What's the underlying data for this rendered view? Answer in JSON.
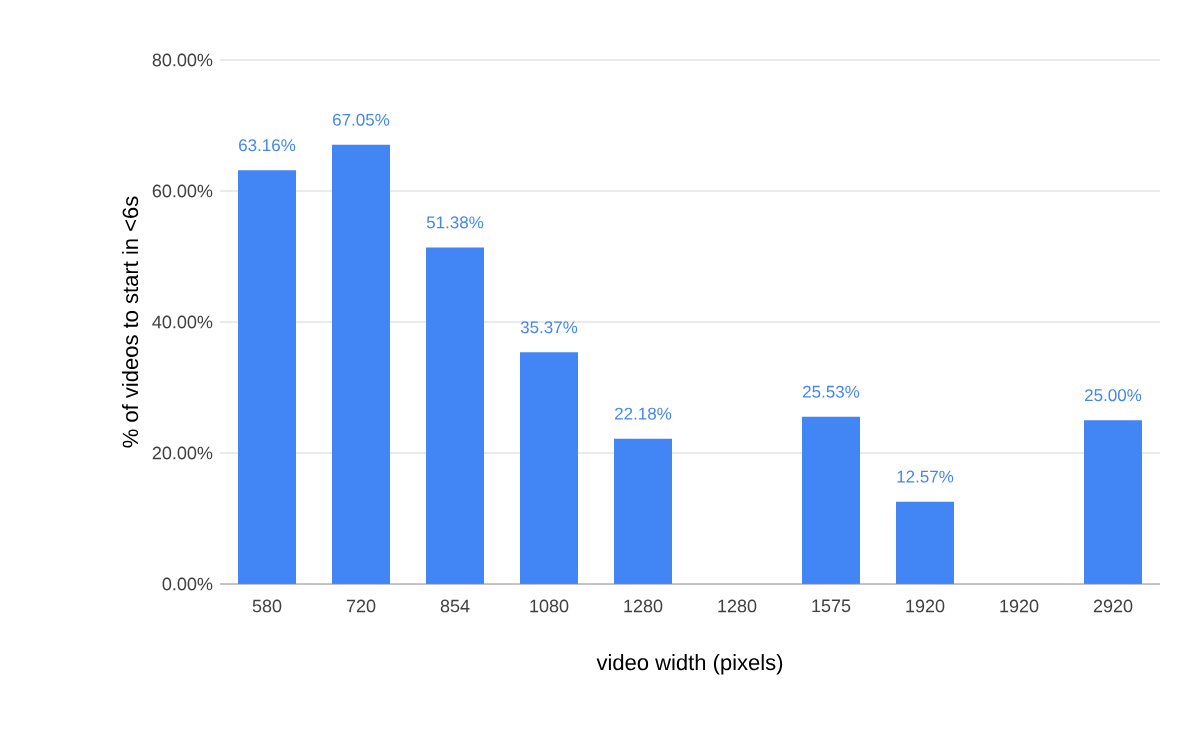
{
  "chart_data": {
    "type": "bar",
    "xlabel": "video width (pixels)",
    "ylabel": "% of videos to start in <6s",
    "categories": [
      "580",
      "720",
      "854",
      "1080",
      "1280",
      "1280",
      "1575",
      "1920",
      "1920",
      "2920"
    ],
    "values": [
      63.16,
      67.05,
      51.38,
      35.37,
      22.18,
      null,
      25.53,
      12.57,
      null,
      25.0
    ],
    "value_labels": [
      "63.16%",
      "67.05%",
      "51.38%",
      "35.37%",
      "22.18%",
      null,
      "25.53%",
      "12.57%",
      null,
      "25.00%"
    ],
    "color": "#4285f4",
    "ylim": [
      0,
      80
    ],
    "yticks": [
      {
        "value": 0,
        "label": "0.00%"
      },
      {
        "value": 20,
        "label": "20.00%"
      },
      {
        "value": 40,
        "label": "40.00%"
      },
      {
        "value": 60,
        "label": "60.00%"
      },
      {
        "value": 80,
        "label": "80.00%"
      }
    ],
    "grid": "y"
  }
}
